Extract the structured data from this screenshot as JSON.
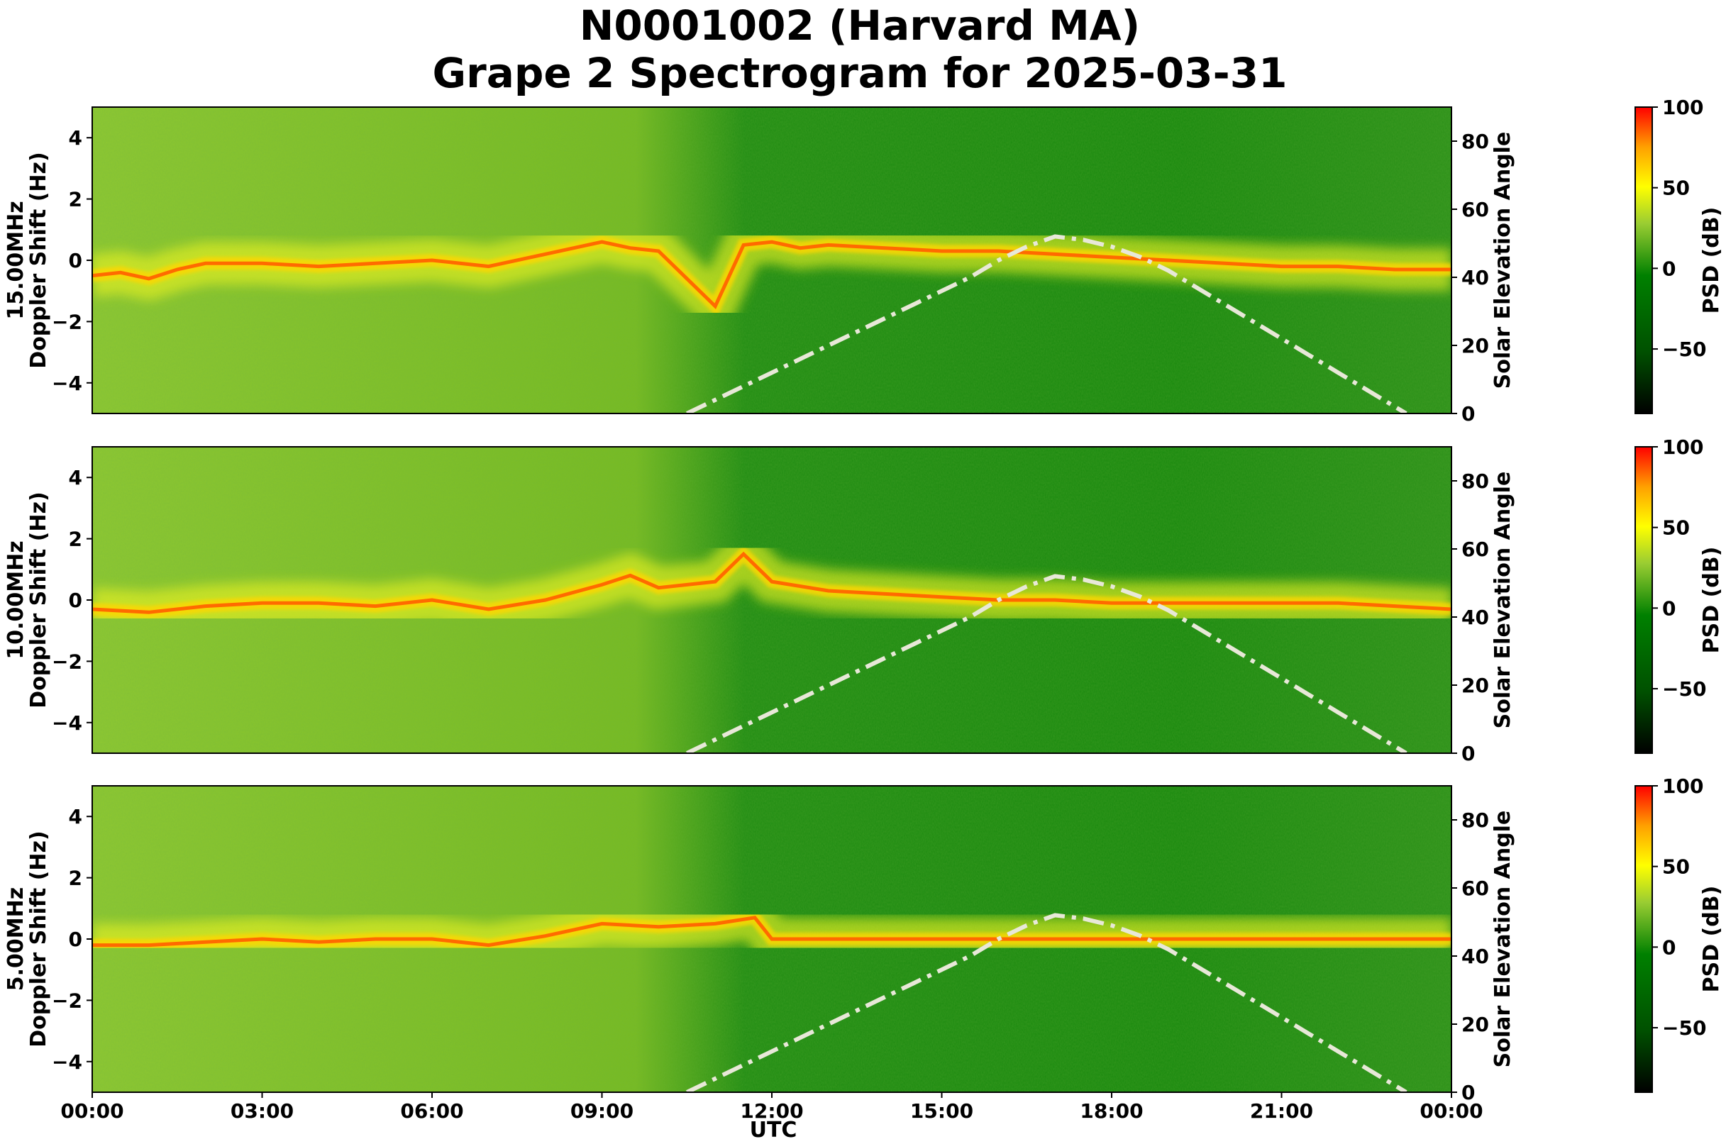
{
  "title": {
    "line1": "N0001002 (Harvard MA)",
    "line2": "Grape 2 Spectrogram for 2025-03-31"
  },
  "chart_data": [
    {
      "type": "heatmap",
      "frequency_label": "15.00MHz",
      "ylabel": "Doppler Shift (Hz)",
      "ylim": [
        -5,
        5
      ],
      "yticks": [
        -4,
        -2,
        0,
        2,
        4
      ],
      "y2label": "Solar Elevation Angle",
      "y2lim": [
        0,
        90
      ],
      "y2ticks": [
        0,
        20,
        40,
        60,
        80
      ],
      "colorbar_label": "PSD (dB)",
      "colorbar_range": [
        -90,
        100
      ],
      "colorbar_ticks": [
        -50,
        0,
        50,
        100
      ],
      "carrier_trace": [
        [
          0.0,
          -0.5
        ],
        [
          0.5,
          -0.4
        ],
        [
          1.0,
          -0.6
        ],
        [
          1.5,
          -0.3
        ],
        [
          2.0,
          -0.1
        ],
        [
          3.0,
          -0.1
        ],
        [
          4.0,
          -0.2
        ],
        [
          5.0,
          -0.1
        ],
        [
          6.0,
          0.0
        ],
        [
          7.0,
          -0.2
        ],
        [
          9.0,
          0.6
        ],
        [
          9.5,
          0.4
        ],
        [
          10.0,
          0.3
        ],
        [
          10.5,
          -0.6
        ],
        [
          11.0,
          -1.5
        ],
        [
          11.5,
          0.5
        ],
        [
          12.0,
          0.6
        ],
        [
          12.5,
          0.4
        ],
        [
          13.0,
          0.5
        ],
        [
          14.0,
          0.4
        ],
        [
          15.0,
          0.3
        ],
        [
          16.0,
          0.3
        ],
        [
          17.0,
          0.2
        ],
        [
          18.0,
          0.1
        ],
        [
          19.0,
          0.0
        ],
        [
          20.0,
          -0.1
        ],
        [
          21.0,
          -0.2
        ],
        [
          22.0,
          -0.2
        ],
        [
          23.0,
          -0.3
        ],
        [
          24.0,
          -0.3
        ]
      ]
    },
    {
      "type": "heatmap",
      "frequency_label": "10.00MHz",
      "ylabel": "Doppler Shift (Hz)",
      "ylim": [
        -5,
        5
      ],
      "yticks": [
        -4,
        -2,
        0,
        2,
        4
      ],
      "y2label": "Solar Elevation Angle",
      "y2lim": [
        0,
        90
      ],
      "y2ticks": [
        0,
        20,
        40,
        60,
        80
      ],
      "colorbar_label": "PSD (dB)",
      "colorbar_range": [
        -90,
        100
      ],
      "colorbar_ticks": [
        -50,
        0,
        50,
        100
      ],
      "carrier_trace": [
        [
          0.0,
          -0.3
        ],
        [
          1.0,
          -0.4
        ],
        [
          2.0,
          -0.2
        ],
        [
          3.0,
          -0.1
        ],
        [
          4.0,
          -0.1
        ],
        [
          5.0,
          -0.2
        ],
        [
          6.0,
          0.0
        ],
        [
          7.0,
          -0.3
        ],
        [
          8.0,
          0.0
        ],
        [
          9.0,
          0.5
        ],
        [
          9.5,
          0.8
        ],
        [
          10.0,
          0.4
        ],
        [
          11.0,
          0.6
        ],
        [
          11.5,
          1.5
        ],
        [
          12.0,
          0.6
        ],
        [
          13.0,
          0.3
        ],
        [
          14.0,
          0.2
        ],
        [
          15.0,
          0.1
        ],
        [
          16.0,
          0.0
        ],
        [
          17.0,
          0.0
        ],
        [
          18.0,
          -0.1
        ],
        [
          20.0,
          -0.1
        ],
        [
          22.0,
          -0.1
        ],
        [
          23.0,
          -0.2
        ],
        [
          24.0,
          -0.3
        ]
      ]
    },
    {
      "type": "heatmap",
      "frequency_label": "5.00MHz",
      "ylabel": "Doppler Shift (Hz)",
      "ylim": [
        -5,
        5
      ],
      "yticks": [
        -4,
        -2,
        0,
        2,
        4
      ],
      "y2label": "Solar Elevation Angle",
      "y2lim": [
        0,
        90
      ],
      "y2ticks": [
        0,
        20,
        40,
        60,
        80
      ],
      "colorbar_label": "PSD (dB)",
      "colorbar_range": [
        -90,
        100
      ],
      "colorbar_ticks": [
        -50,
        0,
        50,
        100
      ],
      "carrier_trace": [
        [
          0.0,
          -0.2
        ],
        [
          1.0,
          -0.2
        ],
        [
          2.0,
          -0.1
        ],
        [
          3.0,
          0.0
        ],
        [
          4.0,
          -0.1
        ],
        [
          5.0,
          0.0
        ],
        [
          6.0,
          0.0
        ],
        [
          7.0,
          -0.2
        ],
        [
          8.0,
          0.1
        ],
        [
          9.0,
          0.5
        ],
        [
          10.0,
          0.4
        ],
        [
          11.0,
          0.5
        ],
        [
          11.7,
          0.7
        ],
        [
          12.0,
          0.0
        ],
        [
          13.0,
          0.0
        ],
        [
          15.0,
          0.0
        ],
        [
          18.0,
          0.0
        ],
        [
          21.0,
          0.0
        ],
        [
          24.0,
          0.0
        ]
      ]
    }
  ],
  "solar_elevation_curve": [
    [
      10.5,
      0
    ],
    [
      11.0,
      4
    ],
    [
      11.5,
      8
    ],
    [
      12.0,
      12
    ],
    [
      12.5,
      16
    ],
    [
      13.0,
      20
    ],
    [
      13.5,
      24
    ],
    [
      14.0,
      28
    ],
    [
      14.5,
      32
    ],
    [
      15.0,
      36
    ],
    [
      15.5,
      40
    ],
    [
      16.0,
      45
    ],
    [
      16.5,
      49
    ],
    [
      17.0,
      52
    ],
    [
      17.5,
      51
    ],
    [
      18.0,
      49
    ],
    [
      18.5,
      46
    ],
    [
      19.0,
      42
    ],
    [
      19.5,
      37
    ],
    [
      20.0,
      32
    ],
    [
      20.5,
      27
    ],
    [
      21.0,
      22
    ],
    [
      21.5,
      17
    ],
    [
      22.0,
      12
    ],
    [
      22.5,
      7
    ],
    [
      23.0,
      2
    ],
    [
      23.2,
      0
    ]
  ],
  "x_axis": {
    "label": "UTC",
    "range_hours": [
      0,
      24
    ],
    "ticks": [
      {
        "hour": 0,
        "label": "00:00"
      },
      {
        "hour": 3,
        "label": "03:00"
      },
      {
        "hour": 6,
        "label": "06:00"
      },
      {
        "hour": 9,
        "label": "09:00"
      },
      {
        "hour": 12,
        "label": "12:00"
      },
      {
        "hour": 15,
        "label": "15:00"
      },
      {
        "hour": 18,
        "label": "18:00"
      },
      {
        "hour": 21,
        "label": "21:00"
      },
      {
        "hour": 24,
        "label": "00:00"
      }
    ]
  },
  "colors": {
    "colormap": [
      "#000000",
      "#006400",
      "#008000",
      "#adff2f",
      "#ffff00",
      "#ffa500",
      "#ff0000"
    ],
    "solar_curve": "#e8e8d8",
    "carrier": "#ff6a00"
  }
}
